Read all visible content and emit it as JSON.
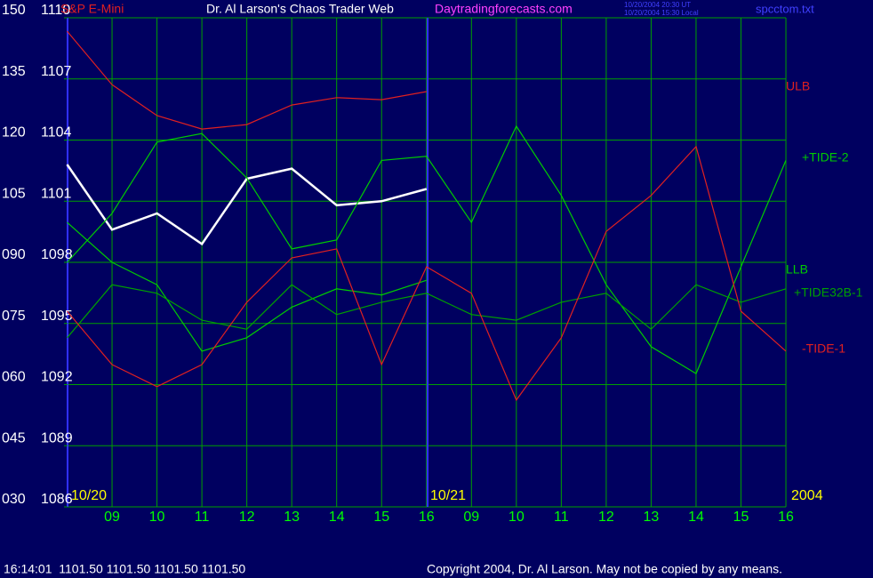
{
  "chart_data": {
    "type": "line",
    "title": "Dr. Al Larson's Chaos Trader Web",
    "site": "Daytradingforecasts.com",
    "timestamps": [
      "10/20/2004 20:30 UT",
      "10/20/2004 15:30 Local"
    ],
    "file": "spcctom.txt",
    "date_labels": [
      "10/20",
      "10/21",
      "2004"
    ],
    "status": "16:14:01  1101.50 1101.50 1101.50 1101.50",
    "copyright": "Copyright 2004, Dr. Al Larson. May not be copied by any means.",
    "categories": [
      null,
      "09",
      "10",
      "11",
      "12",
      "13",
      "14",
      "15",
      "16",
      "09",
      "10",
      "11",
      "12",
      "13",
      "14",
      "15",
      "16"
    ],
    "ylim": [
      30,
      150
    ],
    "yticks": [
      150,
      135,
      120,
      105,
      {
        "value": 90,
        "label": "090"
      },
      {
        "value": 75,
        "label": "075"
      },
      {
        "value": 60,
        "label": "060"
      },
      {
        "value": 45,
        "label": "045"
      },
      {
        "value": 30,
        "label": "030"
      }
    ],
    "y2lim": [
      1086,
      1110
    ],
    "y2ticks": [
      1110,
      1107,
      1104,
      1101,
      1098,
      1095,
      1092,
      1089,
      1086
    ],
    "grid": true,
    "series": [
      {
        "name": "S&P E-Mini",
        "color": "#ffffff",
        "axis": "y2",
        "values": [
          1102.8,
          1099.6,
          1100.4,
          1098.9,
          1102.1,
          1102.6,
          1100.8,
          1101.0,
          1101.6,
          null,
          null,
          null,
          null,
          null,
          null,
          null,
          null
        ]
      },
      {
        "name": "ULB",
        "color": "#e02020",
        "values": [
          146.7,
          133.6,
          126,
          122.7,
          123.8,
          128.6,
          130.4,
          129.9,
          131.9,
          null,
          null,
          null,
          null,
          null,
          null,
          null,
          null
        ]
      },
      {
        "name": "+TIDE-2",
        "color": "#00cc00",
        "values": [
          90,
          102,
          119.5,
          121.6,
          110.7,
          93.3,
          95.5,
          115,
          116,
          99.8,
          123.4,
          106.4,
          84.5,
          69.3,
          62.7,
          88.9,
          115
        ]
      },
      {
        "name": "LLB",
        "color": "#00cc00",
        "values": [
          99.8,
          90,
          84.5,
          68.2,
          71.5,
          79,
          83.5,
          82,
          85.6,
          null,
          null,
          null,
          null,
          null,
          null,
          null,
          null
        ]
      },
      {
        "name": "+TIDE32B-1",
        "color": "#00a000",
        "values": [
          71.5,
          84.5,
          82.4,
          75.8,
          73.6,
          84.5,
          77.2,
          80.2,
          82.4,
          77.2,
          75.8,
          80.2,
          82.4,
          73.6,
          84.5,
          80.2,
          83.5
        ]
      },
      {
        "name": "-TIDE-1",
        "color": "#e02020",
        "values": [
          78,
          64.9,
          59.5,
          64.9,
          80.2,
          91.1,
          93.3,
          64.9,
          88.9,
          82.4,
          56.2,
          71.5,
          97.6,
          106.4,
          118.4,
          78,
          68.2
        ]
      }
    ]
  }
}
